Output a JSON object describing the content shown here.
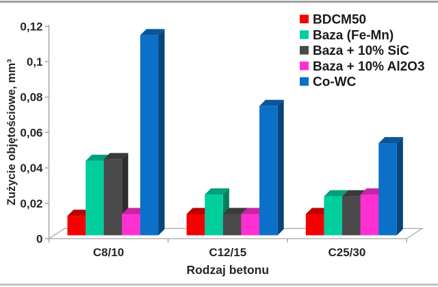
{
  "frame": {
    "top_border_color": "#A0A0A0",
    "bottom_border_color": "#C6C2C0",
    "background_color": "#FFFFFF"
  },
  "chart_data": {
    "type": "bar",
    "projection": "3d",
    "title": "",
    "xlabel": "Rodzaj betonu",
    "ylabel": "Zużycie objętościowe, mm³",
    "categories": [
      "C8/10",
      "C12/15",
      "C25/30"
    ],
    "series": [
      {
        "name": "BDCM50",
        "color": "#F40000",
        "values": [
          0.011,
          0.012,
          0.012
        ]
      },
      {
        "name": "Baza (Fe-Mn)",
        "color": "#00CE9C",
        "values": [
          0.042,
          0.023,
          0.022
        ]
      },
      {
        "name": "Baza + 10% SiC",
        "color": "#4A4A4A",
        "values": [
          0.043,
          0.012,
          0.022
        ]
      },
      {
        "name": "Baza + 10% Al2O3",
        "color": "#FF30D2",
        "values": [
          0.012,
          0.012,
          0.023
        ]
      },
      {
        "name": "Co-WC",
        "color": "#0B70C7",
        "values": [
          0.113,
          0.073,
          0.052
        ]
      }
    ],
    "y_ticks": {
      "labels": [
        "0",
        "0,02",
        "0,04",
        "0,06",
        "0,08",
        "0,1",
        "0,12"
      ],
      "values": [
        0,
        0.02,
        0.04,
        0.06,
        0.08,
        0.1,
        0.12
      ]
    },
    "ylim": [
      0,
      0.12
    ],
    "grid": false,
    "legend_position": "top-right",
    "axis_color": "#A6A6A6",
    "text_color": "#262626"
  }
}
